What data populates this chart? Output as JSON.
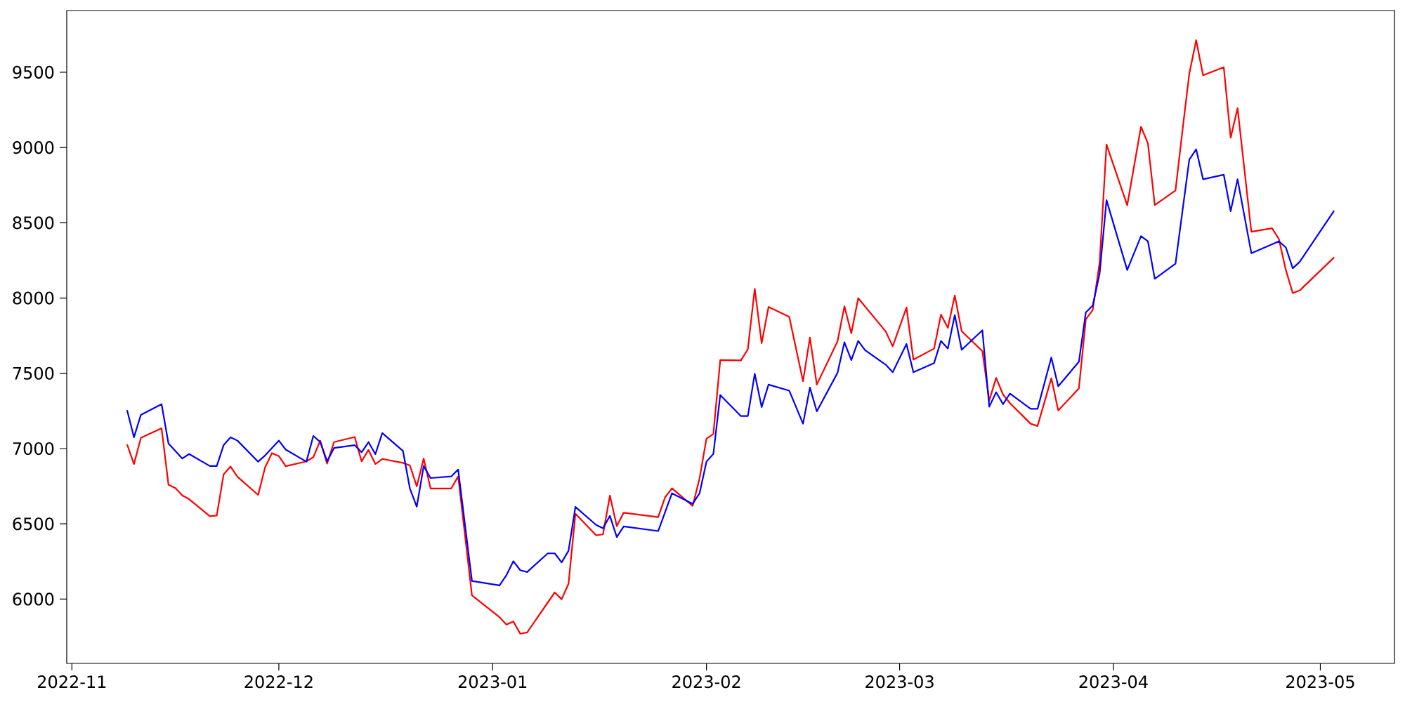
{
  "chart_data": {
    "type": "line",
    "xlim": [
      "2022-10-31T06:00",
      "2023-05-11T18:00"
    ],
    "ylim": [
      5573,
      9910
    ],
    "xticks": [
      {
        "value": "2022-11-01",
        "label": "2022-11"
      },
      {
        "value": "2022-12-01",
        "label": "2022-12"
      },
      {
        "value": "2023-01-01",
        "label": "2023-01"
      },
      {
        "value": "2023-02-01",
        "label": "2023-02"
      },
      {
        "value": "2023-03-01",
        "label": "2023-03"
      },
      {
        "value": "2023-04-01",
        "label": "2023-04"
      },
      {
        "value": "2023-05-01",
        "label": "2023-05"
      }
    ],
    "yticks": [
      6000,
      6500,
      7000,
      7500,
      8000,
      8500,
      9000,
      9500
    ],
    "series": [
      {
        "color": "#ff0000",
        "x": [
          "2022-11-09",
          "2022-11-10",
          "2022-11-11",
          "2022-11-14",
          "2022-11-15",
          "2022-11-16",
          "2022-11-17",
          "2022-11-18",
          "2022-11-21",
          "2022-11-22",
          "2022-11-23",
          "2022-11-24",
          "2022-11-25",
          "2022-11-28",
          "2022-11-29",
          "2022-11-30",
          "2022-12-01",
          "2022-12-02",
          "2022-12-05",
          "2022-12-06",
          "2022-12-07",
          "2022-12-08",
          "2022-12-09",
          "2022-12-12",
          "2022-12-13",
          "2022-12-14",
          "2022-12-15",
          "2022-12-16",
          "2022-12-19",
          "2022-12-20",
          "2022-12-21",
          "2022-12-22",
          "2022-12-23",
          "2022-12-26",
          "2022-12-27",
          "2022-12-29",
          "2023-01-02",
          "2023-01-03",
          "2023-01-04",
          "2023-01-05",
          "2023-01-06",
          "2023-01-10",
          "2023-01-11",
          "2023-01-12",
          "2023-01-13",
          "2023-01-16",
          "2023-01-17",
          "2023-01-18",
          "2023-01-19",
          "2023-01-20",
          "2023-01-25",
          "2023-01-26",
          "2023-01-27",
          "2023-01-30",
          "2023-01-31",
          "2023-02-01",
          "2023-02-02",
          "2023-02-03",
          "2023-02-06",
          "2023-02-07",
          "2023-02-08",
          "2023-02-09",
          "2023-02-10",
          "2023-02-13",
          "2023-02-15",
          "2023-02-16",
          "2023-02-17",
          "2023-02-20",
          "2023-02-21",
          "2023-02-22",
          "2023-02-23",
          "2023-02-27",
          "2023-02-28",
          "2023-03-02",
          "2023-03-03",
          "2023-03-06",
          "2023-03-07",
          "2023-03-08",
          "2023-03-09",
          "2023-03-10",
          "2023-03-13",
          "2023-03-14",
          "2023-03-15",
          "2023-03-16",
          "2023-03-17",
          "2023-03-20",
          "2023-03-21",
          "2023-03-23",
          "2023-03-24",
          "2023-03-27",
          "2023-03-28",
          "2023-03-29",
          "2023-03-30",
          "2023-03-31",
          "2023-04-03",
          "2023-04-05",
          "2023-04-06",
          "2023-04-07",
          "2023-04-10",
          "2023-04-11",
          "2023-04-12",
          "2023-04-13",
          "2023-04-14",
          "2023-04-17",
          "2023-04-18",
          "2023-04-19",
          "2023-04-21",
          "2023-04-24",
          "2023-04-25",
          "2023-04-26",
          "2023-04-27",
          "2023-04-28",
          "2023-05-03"
        ],
        "values": [
          7028,
          6897,
          7071,
          7135,
          6760,
          6738,
          6689,
          6664,
          6551,
          6555,
          6829,
          6881,
          6813,
          6692,
          6874,
          6970,
          6950,
          6883,
          6915,
          6943,
          7052,
          6900,
          7043,
          7077,
          6915,
          6991,
          6897,
          6931,
          6905,
          6888,
          6749,
          6934,
          6735,
          6735,
          6815,
          6025,
          5880,
          5831,
          5851,
          5770,
          5779,
          6044,
          5999,
          6102,
          6567,
          6424,
          6430,
          6688,
          6485,
          6574,
          6545,
          6676,
          6736,
          6619,
          6803,
          7066,
          7097,
          7588,
          7586,
          7660,
          8061,
          7700,
          7941,
          7876,
          7447,
          7737,
          7425,
          7712,
          7945,
          7766,
          7999,
          7777,
          7679,
          7937,
          7591,
          7664,
          7890,
          7802,
          8017,
          7780,
          7647,
          7320,
          7469,
          7359,
          7302,
          7165,
          7150,
          7467,
          7253,
          7400,
          7859,
          7920,
          8236,
          9020,
          8616,
          9138,
          9028,
          8618,
          8714,
          9108,
          9490,
          9713,
          9480,
          9533,
          9065,
          9261,
          8440,
          8464,
          8391,
          8186,
          8033,
          8050,
          8270
        ]
      },
      {
        "color": "#0000ff",
        "x": [
          "2022-11-09",
          "2022-11-10",
          "2022-11-11",
          "2022-11-14",
          "2022-11-15",
          "2022-11-17",
          "2022-11-18",
          "2022-11-21",
          "2022-11-22",
          "2022-11-23",
          "2022-11-24",
          "2022-11-25",
          "2022-11-28",
          "2022-11-29",
          "2022-12-01",
          "2022-12-02",
          "2022-12-05",
          "2022-12-06",
          "2022-12-07",
          "2022-12-08",
          "2022-12-09",
          "2022-12-12",
          "2022-12-13",
          "2022-12-14",
          "2022-12-15",
          "2022-12-16",
          "2022-12-19",
          "2022-12-20",
          "2022-12-21",
          "2022-12-22",
          "2022-12-23",
          "2022-12-26",
          "2022-12-27",
          "2022-12-29",
          "2023-01-02",
          "2023-01-03",
          "2023-01-04",
          "2023-01-05",
          "2023-01-06",
          "2023-01-09",
          "2023-01-10",
          "2023-01-11",
          "2023-01-12",
          "2023-01-13",
          "2023-01-16",
          "2023-01-17",
          "2023-01-18",
          "2023-01-19",
          "2023-01-20",
          "2023-01-25",
          "2023-01-27",
          "2023-01-30",
          "2023-01-31",
          "2023-02-01",
          "2023-02-02",
          "2023-02-03",
          "2023-02-06",
          "2023-02-07",
          "2023-02-08",
          "2023-02-09",
          "2023-02-10",
          "2023-02-13",
          "2023-02-15",
          "2023-02-16",
          "2023-02-17",
          "2023-02-20",
          "2023-02-21",
          "2023-02-22",
          "2023-02-23",
          "2023-02-24",
          "2023-02-27",
          "2023-02-28",
          "2023-03-02",
          "2023-03-03",
          "2023-03-06",
          "2023-03-07",
          "2023-03-08",
          "2023-03-09",
          "2023-03-10",
          "2023-03-13",
          "2023-03-14",
          "2023-03-15",
          "2023-03-16",
          "2023-03-17",
          "2023-03-20",
          "2023-03-21",
          "2023-03-23",
          "2023-03-24",
          "2023-03-27",
          "2023-03-28",
          "2023-03-29",
          "2023-03-30",
          "2023-03-31",
          "2023-04-03",
          "2023-04-05",
          "2023-04-06",
          "2023-04-07",
          "2023-04-10",
          "2023-04-12",
          "2023-04-13",
          "2023-04-14",
          "2023-04-17",
          "2023-04-18",
          "2023-04-19",
          "2023-04-21",
          "2023-04-25",
          "2023-04-26",
          "2023-04-27",
          "2023-04-28",
          "2023-05-03"
        ],
        "values": [
          7255,
          7075,
          7224,
          7295,
          7034,
          6934,
          6964,
          6884,
          6884,
          7023,
          7075,
          7053,
          6913,
          6954,
          7053,
          6993,
          6913,
          7084,
          7044,
          6915,
          7004,
          7023,
          6975,
          7043,
          6963,
          7103,
          6984,
          6735,
          6614,
          6884,
          6804,
          6815,
          6861,
          6120,
          6091,
          6159,
          6252,
          6192,
          6180,
          6304,
          6304,
          6244,
          6321,
          6612,
          6493,
          6471,
          6553,
          6412,
          6483,
          6452,
          6703,
          6633,
          6703,
          6913,
          6965,
          7356,
          7216,
          7216,
          7497,
          7276,
          7425,
          7385,
          7165,
          7405,
          7247,
          7503,
          7706,
          7588,
          7715,
          7653,
          7557,
          7507,
          7695,
          7507,
          7568,
          7715,
          7665,
          7887,
          7656,
          7786,
          7278,
          7374,
          7295,
          7365,
          7264,
          7264,
          7605,
          7414,
          7577,
          7905,
          7950,
          8161,
          8650,
          8186,
          8411,
          8377,
          8128,
          8228,
          8920,
          8988,
          8789,
          8819,
          8577,
          8789,
          8298,
          8377,
          8336,
          8198,
          8240,
          8580
        ]
      }
    ]
  }
}
